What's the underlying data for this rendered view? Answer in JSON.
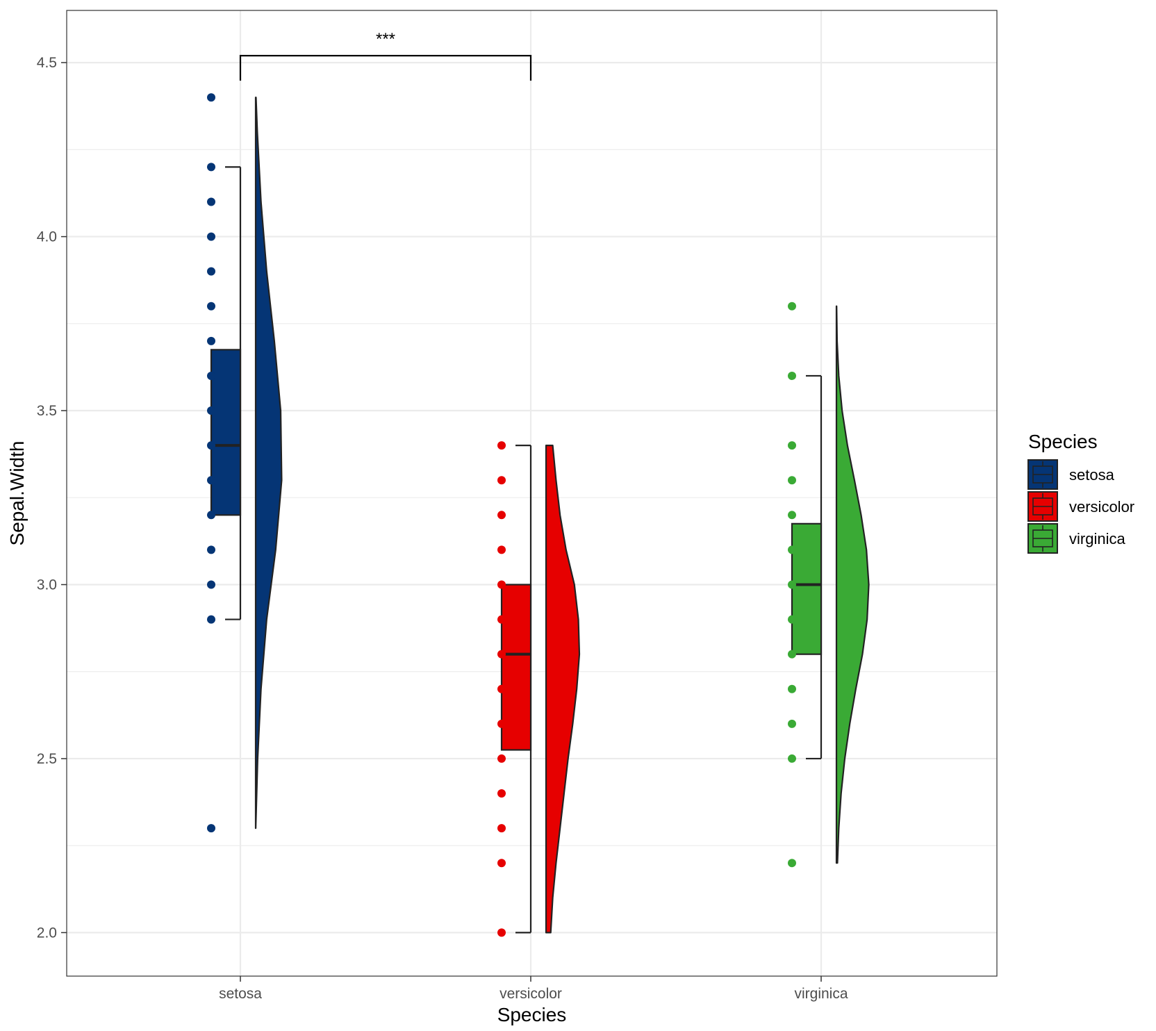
{
  "chart_data": {
    "type": "raincloud",
    "title": "",
    "xlabel": "Species",
    "ylabel": "Sepal.Width",
    "categories": [
      "setosa",
      "versicolor",
      "virginica"
    ],
    "ylim": [
      1.875,
      4.65
    ],
    "yticks": [
      "2.0",
      "2.5",
      "3.0",
      "3.5",
      "4.0",
      "4.5"
    ],
    "ytick_values": [
      2.0,
      2.5,
      3.0,
      3.5,
      4.0,
      4.5
    ],
    "grid": true,
    "legend": {
      "title": "Species",
      "position": "right",
      "entries": [
        "setosa",
        "versicolor",
        "virginica"
      ]
    },
    "colors": {
      "setosa": "#053575",
      "versicolor": "#e60000",
      "virginica": "#3aaa35",
      "outline": "#222222",
      "grid": "#ebebeb",
      "panel_border": "#333333"
    },
    "series": [
      {
        "name": "setosa",
        "points": [
          2.3,
          2.9,
          3.0,
          3.1,
          3.2,
          3.3,
          3.4,
          3.5,
          3.6,
          3.7,
          3.8,
          3.9,
          4.0,
          4.1,
          4.2,
          4.4
        ],
        "box": {
          "min": 2.9,
          "q1": 3.2,
          "median": 3.4,
          "q3": 3.675,
          "max": 4.2
        },
        "density": {
          "y": [
            2.3,
            2.5,
            2.7,
            2.9,
            3.1,
            3.3,
            3.5,
            3.7,
            3.9,
            4.1,
            4.3,
            4.4
          ],
          "w": [
            0.002,
            0.06,
            0.16,
            0.33,
            0.6,
            0.78,
            0.75,
            0.56,
            0.33,
            0.16,
            0.05,
            0.01
          ]
        }
      },
      {
        "name": "versicolor",
        "points": [
          2.0,
          2.2,
          2.3,
          2.4,
          2.5,
          2.6,
          2.7,
          2.8,
          2.9,
          3.0,
          3.1,
          3.2,
          3.3,
          3.4
        ],
        "box": {
          "min": 2.0,
          "q1": 2.525,
          "median": 2.8,
          "q3": 3.0,
          "max": 3.4
        },
        "density": {
          "y": [
            2.0,
            2.1,
            2.2,
            2.3,
            2.4,
            2.5,
            2.6,
            2.7,
            2.8,
            2.9,
            3.0,
            3.1,
            3.2,
            3.3,
            3.4
          ],
          "w": [
            0.14,
            0.2,
            0.3,
            0.42,
            0.54,
            0.66,
            0.8,
            0.92,
            1.0,
            0.97,
            0.85,
            0.6,
            0.42,
            0.3,
            0.2
          ]
        }
      },
      {
        "name": "virginica",
        "points": [
          2.2,
          2.5,
          2.6,
          2.7,
          2.8,
          2.9,
          3.0,
          3.1,
          3.2,
          3.3,
          3.4,
          3.6,
          3.8
        ],
        "box": {
          "min": 2.5,
          "q1": 2.8,
          "median": 3.0,
          "q3": 3.175,
          "max": 3.6
        },
        "density": {
          "y": [
            2.2,
            2.3,
            2.4,
            2.5,
            2.6,
            2.7,
            2.8,
            2.9,
            3.0,
            3.1,
            3.2,
            3.3,
            3.4,
            3.5,
            3.6,
            3.7,
            3.8
          ],
          "w": [
            0.03,
            0.07,
            0.14,
            0.25,
            0.4,
            0.58,
            0.78,
            0.92,
            0.97,
            0.9,
            0.74,
            0.54,
            0.33,
            0.17,
            0.07,
            0.02,
            0.005
          ]
        }
      }
    ],
    "annotations": [
      {
        "type": "significance",
        "from": "setosa",
        "to": "versicolor",
        "label": "***",
        "y": 4.52
      }
    ]
  }
}
